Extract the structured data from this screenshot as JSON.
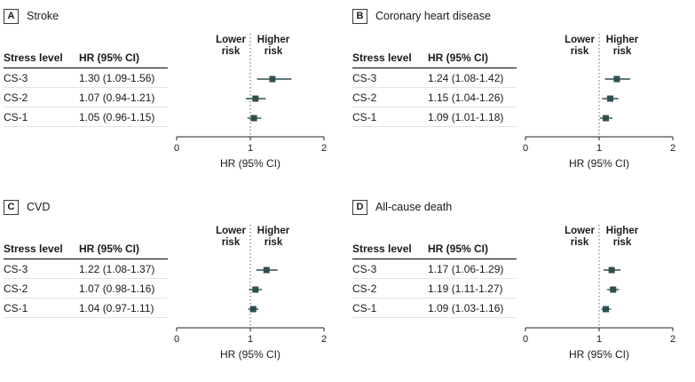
{
  "figure": {
    "risk_labels": {
      "lower": "Lower risk",
      "higher": "Higher risk"
    },
    "table_headers": {
      "level": "Stress level",
      "hr": "HR (95% CI)"
    },
    "axis": {
      "range": [
        0,
        2
      ],
      "ticks": [
        0,
        1,
        2
      ],
      "ref_line": 1,
      "label": "HR (95% CI)"
    },
    "marker_color": "#2f4f4f"
  },
  "chart_data": [
    {
      "type": "forest",
      "panel": "A",
      "title": "Stroke",
      "xlabel": "HR (95% CI)",
      "xlim": [
        0,
        2
      ],
      "ref_line": 1,
      "rows": [
        {
          "level": "CS-3",
          "hr": 1.3,
          "ci_low": 1.09,
          "ci_high": 1.56,
          "display": "1.30 (1.09-1.56)"
        },
        {
          "level": "CS-2",
          "hr": 1.07,
          "ci_low": 0.94,
          "ci_high": 1.21,
          "display": "1.07 (0.94-1.21)"
        },
        {
          "level": "CS-1",
          "hr": 1.05,
          "ci_low": 0.96,
          "ci_high": 1.15,
          "display": "1.05 (0.96-1.15)"
        }
      ]
    },
    {
      "type": "forest",
      "panel": "B",
      "title": "Coronary heart disease",
      "xlabel": "HR (95% CI)",
      "xlim": [
        0,
        2
      ],
      "ref_line": 1,
      "rows": [
        {
          "level": "CS-3",
          "hr": 1.24,
          "ci_low": 1.08,
          "ci_high": 1.42,
          "display": "1.24 (1.08-1.42)"
        },
        {
          "level": "CS-2",
          "hr": 1.15,
          "ci_low": 1.04,
          "ci_high": 1.26,
          "display": "1.15 (1.04-1.26)"
        },
        {
          "level": "CS-1",
          "hr": 1.09,
          "ci_low": 1.01,
          "ci_high": 1.18,
          "display": "1.09 (1.01-1.18)"
        }
      ]
    },
    {
      "type": "forest",
      "panel": "C",
      "title": "CVD",
      "xlabel": "HR (95% CI)",
      "xlim": [
        0,
        2
      ],
      "ref_line": 1,
      "rows": [
        {
          "level": "CS-3",
          "hr": 1.22,
          "ci_low": 1.08,
          "ci_high": 1.37,
          "display": "1.22 (1.08-1.37)"
        },
        {
          "level": "CS-2",
          "hr": 1.07,
          "ci_low": 0.98,
          "ci_high": 1.16,
          "display": "1.07 (0.98-1.16)"
        },
        {
          "level": "CS-1",
          "hr": 1.04,
          "ci_low": 0.97,
          "ci_high": 1.11,
          "display": "1.04 (0.97-1.11)"
        }
      ]
    },
    {
      "type": "forest",
      "panel": "D",
      "title": "All-cause death",
      "xlabel": "HR (95% CI)",
      "xlim": [
        0,
        2
      ],
      "ref_line": 1,
      "rows": [
        {
          "level": "CS-3",
          "hr": 1.17,
          "ci_low": 1.06,
          "ci_high": 1.29,
          "display": "1.17 (1.06-1.29)"
        },
        {
          "level": "CS-2",
          "hr": 1.19,
          "ci_low": 1.11,
          "ci_high": 1.27,
          "display": "1.19 (1.11-1.27)"
        },
        {
          "level": "CS-1",
          "hr": 1.09,
          "ci_low": 1.03,
          "ci_high": 1.16,
          "display": "1.09 (1.03-1.16)"
        }
      ]
    }
  ]
}
